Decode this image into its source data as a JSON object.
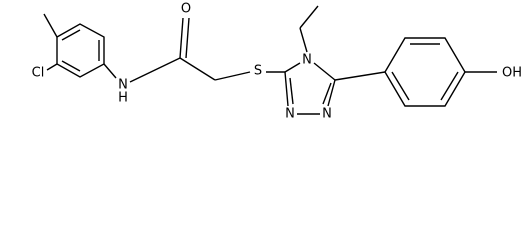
{
  "atoms": [
    {
      "label": "Cl"
    },
    {
      "label": "N"
    },
    {
      "label": "H"
    },
    {
      "label": "O"
    },
    {
      "label": "S"
    },
    {
      "label": "N"
    },
    {
      "label": "N"
    },
    {
      "label": "N"
    },
    {
      "label": "OH"
    }
  ]
}
